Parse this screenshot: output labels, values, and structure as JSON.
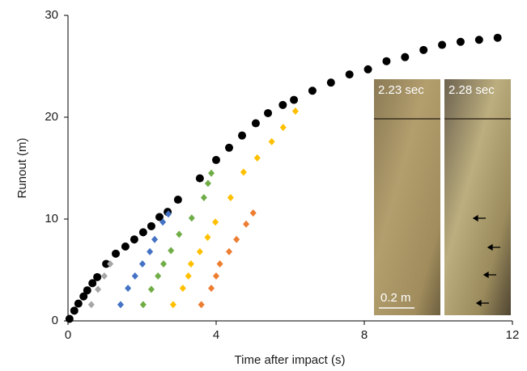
{
  "chart_data": {
    "type": "scatter",
    "x_label": "Time after impact (s)",
    "y_label": "Runout (m)",
    "xlim": [
      0,
      12
    ],
    "xticks": [
      0,
      4,
      8,
      12
    ],
    "ylim": [
      0,
      30
    ],
    "yticks": [
      0,
      10,
      20,
      30
    ],
    "grid": false,
    "series": [
      {
        "color": "#000000",
        "marker": "circle",
        "x": [
          0.04,
          0.17,
          0.28,
          0.42,
          0.52,
          0.66,
          0.79,
          1.03,
          1.29,
          1.55,
          1.79,
          2.03,
          2.25,
          2.47,
          2.69,
          2.97,
          3.56,
          4.0,
          4.35,
          4.7,
          5.07,
          5.4,
          5.8,
          6.1,
          6.6,
          7.1,
          7.6,
          8.1,
          8.6,
          9.1,
          9.6,
          10.1,
          10.6,
          11.1,
          11.6
        ],
        "values": [
          0.2,
          1.0,
          1.7,
          2.4,
          3.0,
          3.7,
          4.3,
          5.6,
          6.6,
          7.3,
          8.0,
          8.7,
          9.3,
          10.2,
          10.7,
          11.9,
          14.0,
          15.8,
          17.0,
          18.2,
          19.4,
          20.4,
          21.2,
          21.7,
          22.6,
          23.4,
          24.2,
          24.7,
          25.5,
          25.9,
          26.6,
          27.1,
          27.4,
          27.6,
          27.8
        ]
      },
      {
        "color": "#a6a6a6",
        "marker": "diamond",
        "x": [
          0.63,
          0.81,
          0.98,
          1.14
        ],
        "values": [
          1.6,
          3.1,
          4.4,
          5.6
        ]
      },
      {
        "color": "#4472c4",
        "marker": "diamond",
        "x": [
          1.42,
          1.62,
          1.81,
          2.01,
          2.21,
          2.34,
          2.56,
          2.71
        ],
        "values": [
          1.6,
          3.2,
          4.4,
          5.6,
          6.8,
          8.0,
          9.7,
          10.5
        ]
      },
      {
        "color": "#70ad47",
        "marker": "diamond",
        "x": [
          2.03,
          2.25,
          2.43,
          2.58,
          2.78,
          3.0,
          3.34,
          3.67,
          3.78,
          3.87
        ],
        "values": [
          1.6,
          3.1,
          4.4,
          5.6,
          6.9,
          8.5,
          10.1,
          12.1,
          13.5,
          14.5
        ]
      },
      {
        "color": "#ffc000",
        "marker": "diamond",
        "x": [
          2.84,
          3.1,
          3.25,
          3.32,
          3.56,
          3.77,
          3.98,
          4.39,
          4.74,
          5.11,
          5.5,
          5.81,
          6.14
        ],
        "values": [
          1.6,
          3.2,
          4.4,
          5.6,
          6.8,
          8.2,
          9.7,
          12.1,
          14.6,
          16.0,
          17.6,
          19.0,
          20.6
        ]
      },
      {
        "color": "#ed7d31",
        "marker": "diamond",
        "x": [
          3.6,
          3.87,
          4.0,
          4.1,
          4.35,
          4.55,
          4.81,
          5.0
        ],
        "values": [
          1.6,
          3.2,
          4.4,
          5.6,
          6.8,
          8.0,
          9.5,
          10.6
        ]
      }
    ],
    "inset": {
      "left_label": "2.23 sec",
      "right_label": "2.28 sec",
      "scale_label": "0.2 m"
    }
  }
}
